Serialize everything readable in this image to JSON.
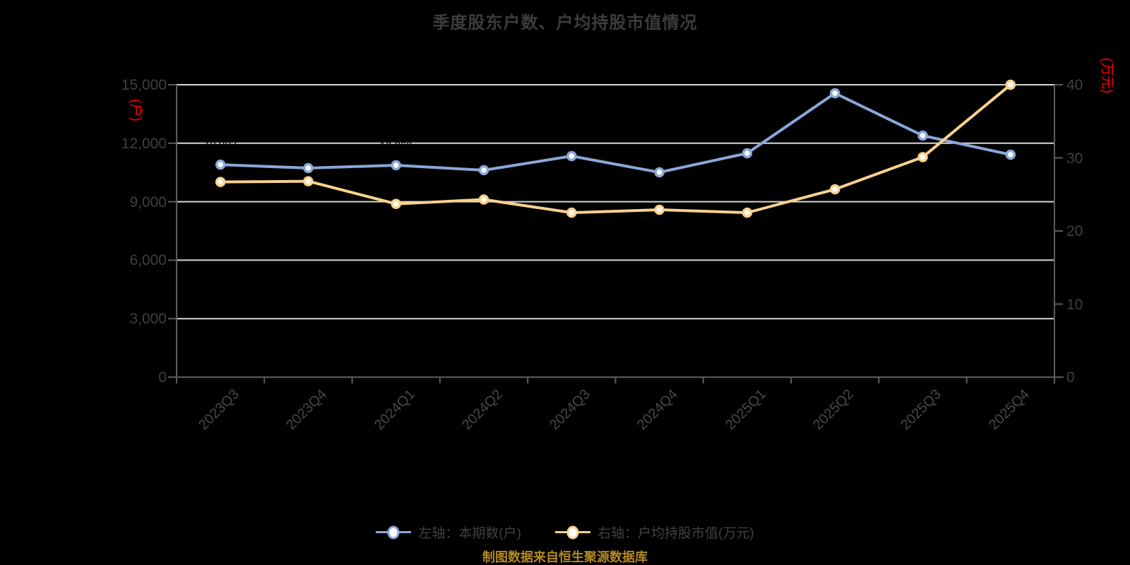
{
  "title": "季度股东户数、户均持股市值情况",
  "source_note": "制图数据来自恒生聚源数据库",
  "colors": {
    "background": "#000000",
    "title_text": "#3c3c3c",
    "axis_line": "#5c5c5c",
    "gridline": "#d7d7d7",
    "tick_text": "#3f3f3f",
    "unit_text": "#ff0000",
    "data_label_text": "#000000",
    "caption_text": "#b4891f",
    "series_blue": "#8aa7d8",
    "series_yellow": "#f9d18c"
  },
  "chart_data": {
    "type": "line",
    "title": "季度股东户数、户均持股市值情况",
    "categories": [
      "2023Q3",
      "2023Q4",
      "2024Q1",
      "2024Q2",
      "2024Q3",
      "2024Q4",
      "2025Q1",
      "2025Q2",
      "2025Q3",
      "2025Q4"
    ],
    "grid": true,
    "legend_position": "bottom",
    "left_axis": {
      "unit": "(户)",
      "min": 0,
      "max": 15000,
      "tick_values": [
        15000,
        12000,
        9000,
        6000,
        3000,
        0
      ],
      "tick_labels": [
        "15,000",
        "12,000",
        "9,000",
        "6,000",
        "3,000",
        "0"
      ]
    },
    "right_axis": {
      "unit": "(万元)",
      "min": 0,
      "max": 40,
      "tick_values": [
        40,
        30,
        20,
        10,
        0
      ],
      "tick_labels": [
        "40",
        "30",
        "20",
        "10",
        "0"
      ]
    },
    "series": [
      {
        "name": "左轴：本期数(户)",
        "axis": "left",
        "color": "#8aa7d8",
        "values": [
          10903,
          10724,
          10869,
          10615,
          11340,
          10507,
          11486,
          14565,
          12391,
          11413
        ],
        "point_labels": [
          "10,903",
          "10,724",
          "10,869",
          "10,615",
          "11,340",
          "10,507",
          "11,486",
          "14,565",
          "12,391",
          "11,413"
        ],
        "point_labels_visible_color": "#000000"
      },
      {
        "name": "右轴：户均持股市值(万元)",
        "axis": "right",
        "color": "#f9d18c",
        "values": [
          26.7,
          26.8,
          23.7,
          24.3,
          22.5,
          22.9,
          22.5,
          25.7,
          30.1,
          40.0
        ]
      }
    ]
  },
  "legend": {
    "items": [
      {
        "label": "左轴：本期数(户)",
        "color": "#8aa7d8"
      },
      {
        "label": "右轴：户均持股市值(万元)",
        "color": "#f9d18c"
      }
    ]
  }
}
